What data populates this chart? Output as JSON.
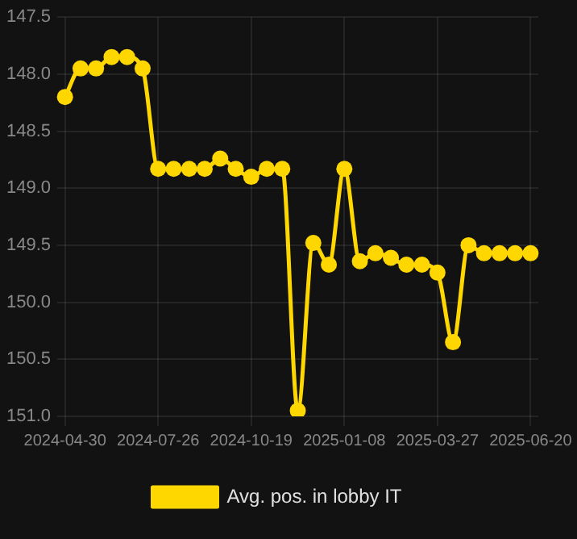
{
  "chart_data": {
    "type": "line",
    "categories": [
      "2024-04-30",
      null,
      null,
      null,
      null,
      null,
      "2024-07-26",
      null,
      null,
      null,
      null,
      null,
      "2024-10-19",
      null,
      null,
      null,
      null,
      null,
      "2025-01-08",
      null,
      null,
      null,
      null,
      null,
      "2025-03-27",
      null,
      null,
      null,
      null,
      null,
      "2025-06-20"
    ],
    "series": [
      {
        "name": "Avg. pos. in lobby IT",
        "color": "#ffd700",
        "values": [
          148.2,
          147.95,
          147.95,
          147.85,
          147.85,
          147.95,
          148.83,
          148.83,
          148.83,
          148.83,
          148.74,
          148.83,
          148.9,
          148.83,
          148.83,
          150.95,
          149.48,
          149.67,
          148.83,
          149.64,
          149.57,
          149.61,
          149.67,
          149.67,
          149.74,
          150.35,
          149.5,
          149.57,
          149.57,
          149.57,
          149.57
        ]
      }
    ],
    "ylim": [
      151.0,
      147.5
    ],
    "yticks": [
      {
        "value": 147.5,
        "label": "147.5"
      },
      {
        "value": 148,
        "label": "148.0"
      },
      {
        "value": 148.5,
        "label": "148.5"
      },
      {
        "value": 149,
        "label": "149.0"
      },
      {
        "value": 149.5,
        "label": "149.5"
      },
      {
        "value": 150,
        "label": "150.0"
      },
      {
        "value": 150.5,
        "label": "150.5"
      },
      {
        "value": 151,
        "label": "151.0"
      }
    ],
    "grid": true,
    "legend": "bottom",
    "marker": "circle"
  }
}
